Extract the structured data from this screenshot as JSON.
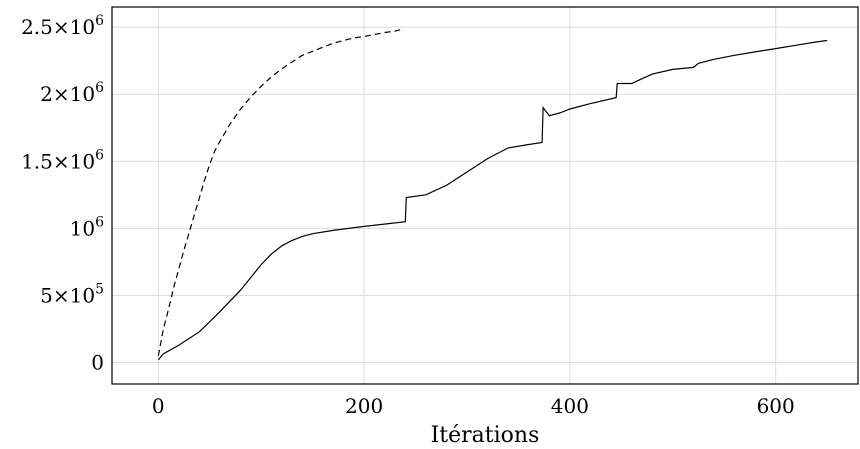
{
  "chart_data": {
    "type": "line",
    "xlabel": "Itérations",
    "ylabel": "",
    "xlim": [
      -45,
      680
    ],
    "ylim": [
      -160000,
      2650000
    ],
    "grid": true,
    "x_ticks": [
      {
        "value": 0,
        "label": "0"
      },
      {
        "value": 200,
        "label": "200"
      },
      {
        "value": 400,
        "label": "400"
      },
      {
        "value": 600,
        "label": "600"
      }
    ],
    "y_ticks": [
      {
        "value": 0,
        "mantissa": "0",
        "exponent": ""
      },
      {
        "value": 500000,
        "mantissa": "5×10",
        "exponent": "5"
      },
      {
        "value": 1000000,
        "mantissa": "10",
        "exponent": "6"
      },
      {
        "value": 1500000,
        "mantissa": "1.5×10",
        "exponent": "6"
      },
      {
        "value": 2000000,
        "mantissa": "2×10",
        "exponent": "6"
      },
      {
        "value": 2500000,
        "mantissa": "2.5×10",
        "exponent": "6"
      }
    ],
    "series": [
      {
        "style": "solid",
        "color": "#000000",
        "x": [
          0,
          5,
          20,
          40,
          60,
          80,
          100,
          110,
          120,
          130,
          140,
          150,
          170,
          200,
          240,
          241,
          260,
          280,
          300,
          320,
          340,
          360,
          373,
          374,
          380,
          390,
          400,
          420,
          445,
          446,
          460,
          480,
          500,
          520,
          525,
          540,
          560,
          580,
          600,
          620,
          640,
          650
        ],
        "y": [
          20000,
          65000,
          130000,
          230000,
          380000,
          540000,
          730000,
          810000,
          870000,
          910000,
          940000,
          960000,
          985000,
          1015000,
          1050000,
          1230000,
          1250000,
          1320000,
          1420000,
          1520000,
          1600000,
          1625000,
          1640000,
          1900000,
          1840000,
          1860000,
          1890000,
          1930000,
          1975000,
          2080000,
          2080000,
          2150000,
          2185000,
          2200000,
          2230000,
          2260000,
          2290000,
          2315000,
          2340000,
          2365000,
          2390000,
          2400000
        ]
      },
      {
        "style": "dashed",
        "color": "#000000",
        "x": [
          0,
          5,
          10,
          15,
          20,
          25,
          30,
          35,
          40,
          45,
          50,
          55,
          60,
          70,
          80,
          90,
          100,
          110,
          120,
          130,
          140,
          150,
          160,
          170,
          180,
          190,
          200,
          210,
          220,
          230,
          235
        ],
        "y": [
          50000,
          250000,
          400000,
          560000,
          700000,
          840000,
          970000,
          1100000,
          1230000,
          1360000,
          1480000,
          1580000,
          1650000,
          1780000,
          1890000,
          1980000,
          2060000,
          2130000,
          2190000,
          2240000,
          2290000,
          2320000,
          2350000,
          2380000,
          2400000,
          2420000,
          2430000,
          2445000,
          2460000,
          2470000,
          2480000
        ]
      }
    ]
  }
}
